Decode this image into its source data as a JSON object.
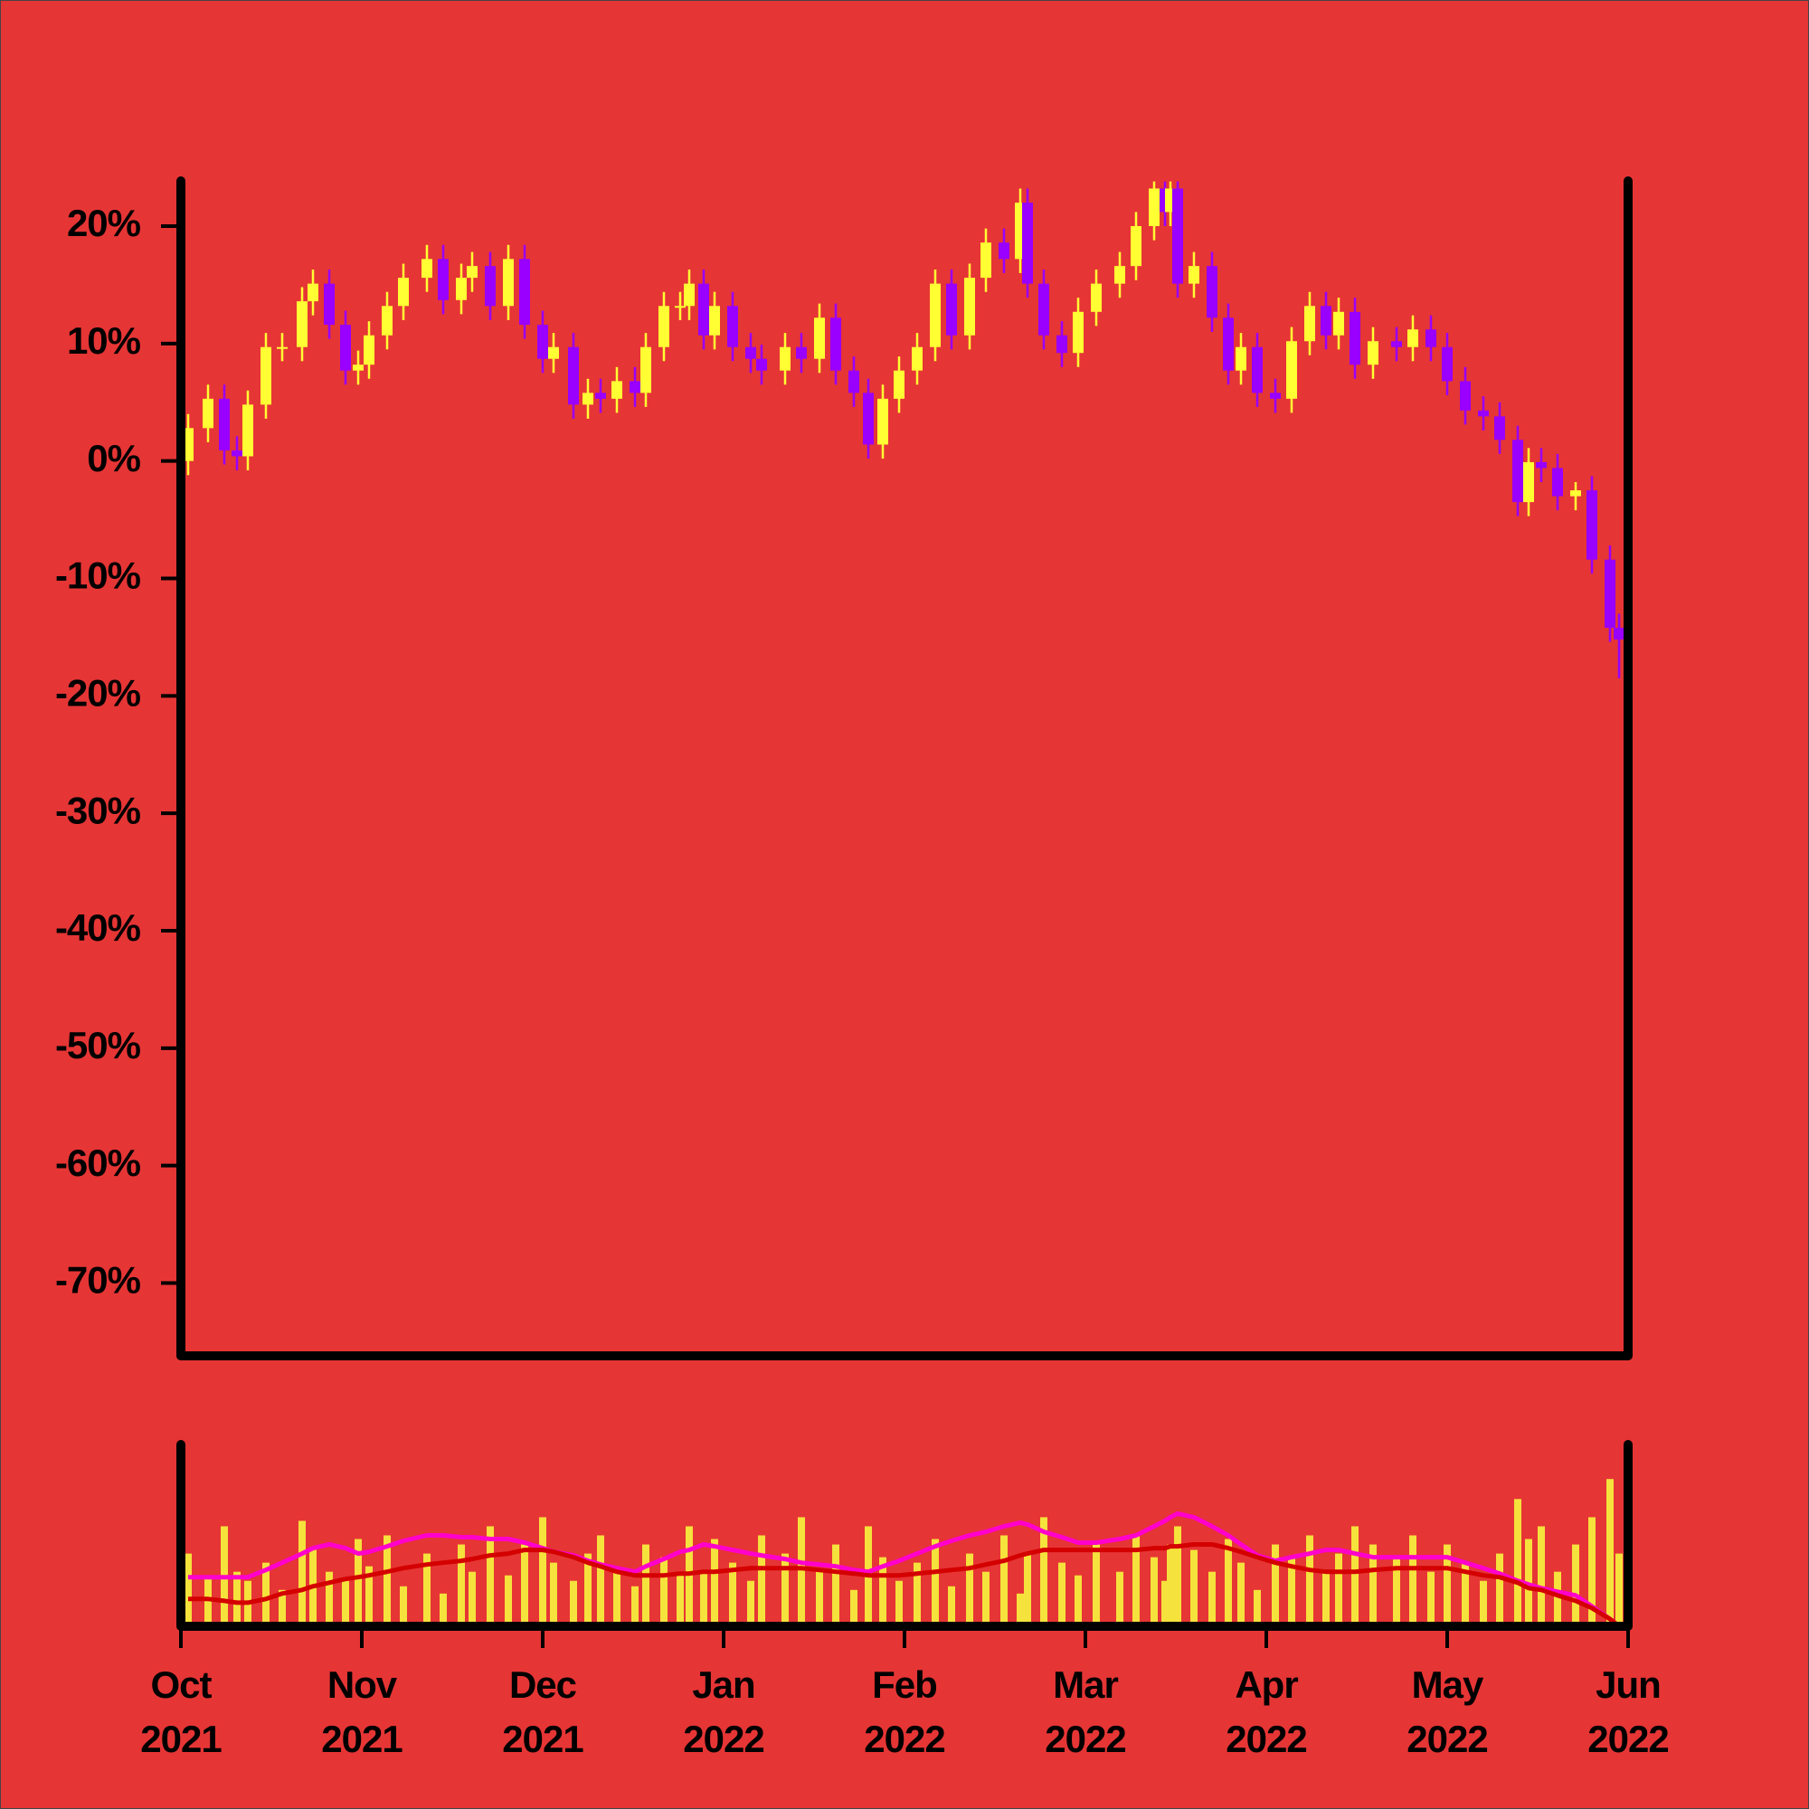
{
  "chart_data": [
    {
      "type": "candlestick",
      "xlim": [
        0,
        8
      ],
      "ylim": [
        -76.2,
        23.85
      ],
      "yticks": [
        {
          "value": 20,
          "label": "20%"
        },
        {
          "value": 10,
          "label": "10%"
        },
        {
          "value": 0,
          "label": "0%"
        },
        {
          "value": -10,
          "label": "-10%"
        },
        {
          "value": -20,
          "label": "-20%"
        },
        {
          "value": -30,
          "label": "-30%"
        },
        {
          "value": -40,
          "label": "-40%"
        },
        {
          "value": -50,
          "label": "-50%"
        },
        {
          "value": -60,
          "label": "-60%"
        },
        {
          "value": -70,
          "label": "-70%"
        }
      ],
      "up_color": "#ffff33",
      "down_color": "#9900ff",
      "x": [
        0.04,
        0.15,
        0.24,
        0.31,
        0.37,
        0.47,
        0.56,
        0.67,
        0.73,
        0.82,
        0.91,
        0.98,
        1.04,
        1.14,
        1.23,
        1.36,
        1.45,
        1.55,
        1.61,
        1.71,
        1.81,
        1.9,
        2.0,
        2.06,
        2.17,
        2.25,
        2.32,
        2.41,
        2.51,
        2.57,
        2.67,
        2.76,
        2.81,
        2.89,
        2.95,
        3.05,
        3.15,
        3.21,
        3.34,
        3.43,
        3.53,
        3.62,
        3.72,
        3.8,
        3.88,
        3.97,
        4.07,
        4.17,
        4.26,
        4.36,
        4.45,
        4.55,
        4.64,
        4.68,
        4.77,
        4.87,
        4.96,
        5.06,
        5.19,
        5.28,
        5.38,
        5.44,
        5.47,
        5.51,
        5.6,
        5.7,
        5.79,
        5.86,
        5.95,
        6.05,
        6.14,
        6.24,
        6.33,
        6.4,
        6.49,
        6.59,
        6.72,
        6.81,
        6.91,
        7.0,
        7.1,
        7.2,
        7.29,
        7.39,
        7.45,
        7.52,
        7.61,
        7.71,
        7.8,
        7.9,
        7.95
      ],
      "open": [
        0,
        2.8,
        5.3,
        0.9,
        0.4,
        4.8,
        9.7,
        9.7,
        13.6,
        15.1,
        11.6,
        7.7,
        8.2,
        10.7,
        13.2,
        15.6,
        17.2,
        13.7,
        15.6,
        16.6,
        13.2,
        17.2,
        11.6,
        8.7,
        9.7,
        4.8,
        5.8,
        5.3,
        6.8,
        5.8,
        9.7,
        13.2,
        13.2,
        15.1,
        10.7,
        13.2,
        9.7,
        8.7,
        7.7,
        9.7,
        8.7,
        12.2,
        7.7,
        5.8,
        1.4,
        5.3,
        7.7,
        9.7,
        15.1,
        10.7,
        15.6,
        18.6,
        17.2,
        22.0,
        15.1,
        10.7,
        9.2,
        12.7,
        15.1,
        16.6,
        20.0,
        23.2,
        21.2,
        23.2,
        15.1,
        16.6,
        12.2,
        7.7,
        9.7,
        5.8,
        5.3,
        10.2,
        13.2,
        10.7,
        12.7,
        8.2,
        10.2,
        9.7,
        11.2,
        9.7,
        6.8,
        4.3,
        3.8,
        1.8,
        -3.5,
        -0.1,
        -0.6,
        -3.0,
        -2.5,
        -8.4,
        -14.2
      ],
      "high": [
        4.0,
        6.5,
        6.5,
        2.1,
        6.0,
        10.9,
        10.9,
        14.8,
        16.3,
        16.3,
        12.8,
        9.4,
        11.9,
        14.4,
        16.8,
        18.4,
        18.4,
        16.8,
        17.8,
        17.8,
        18.4,
        18.4,
        12.8,
        10.9,
        10.9,
        7.0,
        7.0,
        8.0,
        8.0,
        10.9,
        14.4,
        14.4,
        16.3,
        16.3,
        14.4,
        14.4,
        10.9,
        9.9,
        10.9,
        10.9,
        13.4,
        13.4,
        8.9,
        7.0,
        6.5,
        8.9,
        10.9,
        16.3,
        16.3,
        16.8,
        19.8,
        19.8,
        23.2,
        23.2,
        16.3,
        11.9,
        13.9,
        16.3,
        17.8,
        21.2,
        23.8,
        23.8,
        23.8,
        23.8,
        17.8,
        17.8,
        13.4,
        10.9,
        10.9,
        7.0,
        11.4,
        14.4,
        14.4,
        13.9,
        13.9,
        11.4,
        11.4,
        12.4,
        12.4,
        10.9,
        8.0,
        5.5,
        5.0,
        3.0,
        1.1,
        1.1,
        0.6,
        -1.8,
        -1.3,
        -7.2,
        -13.0
      ],
      "low": [
        -1.2,
        1.6,
        -0.3,
        -0.8,
        -0.8,
        3.6,
        8.5,
        8.5,
        12.4,
        10.4,
        6.5,
        6.5,
        7.0,
        9.5,
        12.0,
        14.4,
        12.5,
        12.5,
        14.4,
        12.0,
        12.0,
        10.4,
        7.5,
        7.5,
        3.6,
        3.6,
        4.1,
        4.1,
        4.6,
        4.6,
        8.5,
        12.0,
        12.0,
        9.5,
        9.5,
        8.5,
        7.5,
        6.5,
        6.5,
        7.5,
        7.5,
        6.5,
        4.6,
        0.2,
        0.2,
        4.1,
        6.5,
        8.5,
        9.5,
        9.5,
        14.4,
        16.0,
        16.0,
        13.9,
        9.5,
        8.0,
        8.0,
        11.5,
        13.9,
        15.4,
        18.8,
        20.0,
        20.0,
        13.9,
        13.9,
        11.0,
        6.5,
        6.5,
        4.6,
        4.1,
        4.1,
        9.0,
        9.5,
        9.5,
        7.0,
        7.0,
        8.5,
        8.5,
        8.5,
        5.6,
        3.1,
        2.6,
        0.6,
        -4.7,
        -4.7,
        -1.8,
        -4.2,
        -4.2,
        -9.6,
        -15.4,
        -18.5
      ],
      "close": [
        2.8,
        5.3,
        0.9,
        0.4,
        4.8,
        9.7,
        9.7,
        13.6,
        15.1,
        11.6,
        7.7,
        8.2,
        10.7,
        13.2,
        15.6,
        17.2,
        13.7,
        15.6,
        16.6,
        13.2,
        17.2,
        11.6,
        8.7,
        9.7,
        4.8,
        5.8,
        5.3,
        6.8,
        5.8,
        9.7,
        13.2,
        13.2,
        15.1,
        10.7,
        13.2,
        9.7,
        8.7,
        7.7,
        9.7,
        8.7,
        12.2,
        7.7,
        5.8,
        1.4,
        5.3,
        7.7,
        9.7,
        15.1,
        10.7,
        15.6,
        18.6,
        17.2,
        22.0,
        15.1,
        10.7,
        9.2,
        12.7,
        15.1,
        16.6,
        20.0,
        23.2,
        21.2,
        23.2,
        15.1,
        16.6,
        12.2,
        7.7,
        9.7,
        5.8,
        5.3,
        10.2,
        13.2,
        10.7,
        12.7,
        8.2,
        10.2,
        9.7,
        11.2,
        9.7,
        6.8,
        4.3,
        3.8,
        1.8,
        -3.5,
        -0.1,
        -0.6,
        -3.0,
        -2.5,
        -8.4,
        -14.2,
        -15.2
      ]
    },
    {
      "type": "bar",
      "xlim": [
        0,
        8
      ],
      "ylim": [
        0,
        100
      ],
      "xticks": [
        {
          "value": 0,
          "label": "Oct 2021"
        },
        {
          "value": 1,
          "label": "Nov 2021"
        },
        {
          "value": 2,
          "label": "Dec 2021"
        },
        {
          "value": 3,
          "label": "Jan 2022"
        },
        {
          "value": 4,
          "label": "Feb 2022"
        },
        {
          "value": 5,
          "label": "Mar 2022"
        },
        {
          "value": 6,
          "label": "Apr 2022"
        },
        {
          "value": 7,
          "label": "May 2022"
        },
        {
          "value": 8,
          "label": "Jun 2022"
        }
      ],
      "color": "#f5e23c",
      "x": [
        0.04,
        0.15,
        0.24,
        0.31,
        0.37,
        0.47,
        0.56,
        0.67,
        0.73,
        0.82,
        0.91,
        0.98,
        1.04,
        1.14,
        1.23,
        1.36,
        1.45,
        1.55,
        1.61,
        1.71,
        1.81,
        1.9,
        2.0,
        2.06,
        2.17,
        2.25,
        2.32,
        2.41,
        2.51,
        2.57,
        2.67,
        2.76,
        2.81,
        2.89,
        2.95,
        3.05,
        3.15,
        3.21,
        3.34,
        3.43,
        3.53,
        3.62,
        3.72,
        3.8,
        3.88,
        3.97,
        4.07,
        4.17,
        4.26,
        4.36,
        4.45,
        4.55,
        4.64,
        4.68,
        4.77,
        4.87,
        4.96,
        5.06,
        5.19,
        5.28,
        5.38,
        5.44,
        5.47,
        5.51,
        5.6,
        5.7,
        5.79,
        5.86,
        5.95,
        6.05,
        6.14,
        6.24,
        6.33,
        6.4,
        6.49,
        6.59,
        6.72,
        6.81,
        6.91,
        7.0,
        7.1,
        7.2,
        7.29,
        7.39,
        7.45,
        7.52,
        7.61,
        7.71,
        7.8,
        7.9,
        7.95
      ],
      "values": [
        40,
        28,
        55,
        30,
        25,
        35,
        20,
        58,
        42,
        30,
        25,
        48,
        33,
        50,
        22,
        40,
        18,
        45,
        30,
        55,
        28,
        45,
        60,
        35,
        25,
        40,
        50,
        30,
        22,
        45,
        38,
        28,
        55,
        30,
        48,
        35,
        25,
        50,
        40,
        60,
        30,
        45,
        20,
        55,
        38,
        25,
        35,
        48,
        22,
        40,
        30,
        50,
        18,
        40,
        60,
        35,
        28,
        45,
        30,
        50,
        38,
        25,
        45,
        55,
        42,
        30,
        48,
        35,
        20,
        45,
        38,
        50,
        30,
        40,
        55,
        45,
        38,
        50,
        30,
        45,
        35,
        25,
        40,
        70,
        48,
        55,
        30,
        45,
        60,
        81,
        40
      ],
      "lines": [
        {
          "color": "#ff00cc",
          "values": [
            27,
            27,
            27,
            27,
            27,
            31,
            35,
            40,
            43,
            45,
            43,
            40,
            41,
            44,
            47,
            50,
            50,
            49,
            49,
            48,
            48,
            46,
            43,
            41,
            39,
            36,
            34,
            32,
            30,
            33,
            37,
            41,
            42,
            45,
            44,
            42,
            40,
            39,
            37,
            35,
            34,
            33,
            31,
            30,
            33,
            36,
            40,
            44,
            47,
            50,
            52,
            55,
            57,
            56,
            52,
            49,
            46,
            46,
            48,
            50,
            55,
            58,
            60,
            62,
            60,
            55,
            50,
            45,
            39,
            36,
            38,
            40,
            42,
            42,
            40,
            38,
            38,
            38,
            38,
            38,
            35,
            32,
            29,
            25,
            23,
            21,
            19,
            17,
            11,
            4,
            0
          ]
        },
        {
          "color": "#d40000",
          "values": [
            15,
            15,
            14,
            13,
            13,
            15,
            18,
            20,
            22,
            24,
            26,
            27,
            28,
            30,
            32,
            34,
            35,
            36,
            37,
            39,
            40,
            42,
            42,
            41,
            38,
            35,
            33,
            30,
            28,
            28,
            28,
            29,
            29,
            30,
            30,
            31,
            32,
            32,
            32,
            32,
            31,
            30,
            29,
            28,
            28,
            28,
            29,
            30,
            31,
            32,
            34,
            36,
            39,
            40,
            42,
            42,
            42,
            42,
            42,
            42,
            43,
            43,
            44,
            44,
            45,
            45,
            43,
            41,
            38,
            35,
            33,
            31,
            30,
            30,
            30,
            31,
            32,
            32,
            32,
            32,
            30,
            28,
            27,
            24,
            21,
            20,
            17,
            14,
            10,
            4,
            0
          ]
        }
      ]
    }
  ]
}
